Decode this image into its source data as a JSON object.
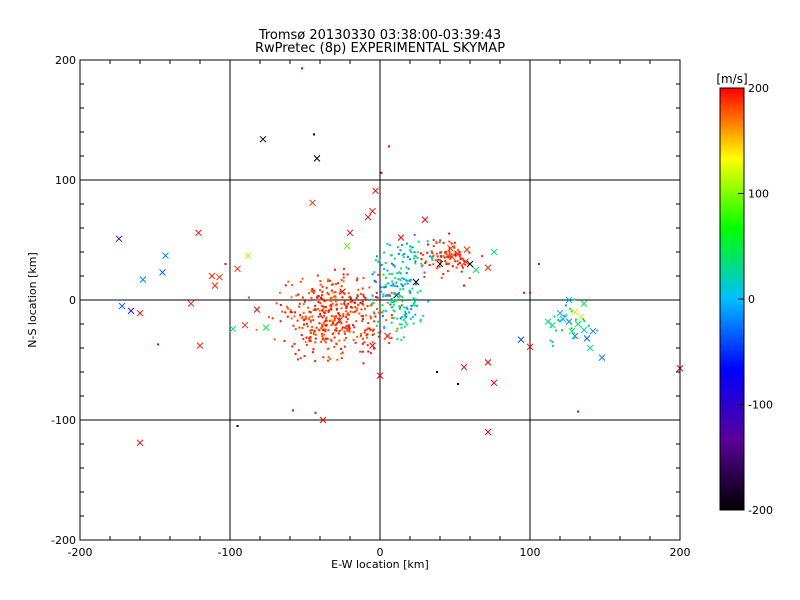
{
  "chart_data": {
    "type": "scatter",
    "title": "Tromsø 20130330 03:38:00-03:39:43",
    "subtitle": "RwPretec (8p) EXPERIMENTAL SKYMAP",
    "xlabel": "E-W location [km]",
    "ylabel": "N-S location [km]",
    "xlim": [
      -200,
      200
    ],
    "ylim": [
      -200,
      200
    ],
    "xticks": [
      "-200",
      "-100",
      "0",
      "100",
      "200"
    ],
    "yticks": [
      "-200",
      "-100",
      "0",
      "100",
      "200"
    ],
    "grid": true,
    "colorbar": {
      "label": "[m/s]",
      "range": [
        -200,
        200
      ],
      "ticks": [
        "200",
        "100",
        "0",
        "-100",
        "-200"
      ],
      "stops": [
        "#000000",
        "#5a0099",
        "#0000ff",
        "#00bfff",
        "#00ff00",
        "#ffff00",
        "#ff0000"
      ]
    },
    "series": [
      {
        "marker": "x",
        "points": [
          [
            -78,
            134,
            -200
          ],
          [
            -42,
            118,
            -200
          ],
          [
            -45,
            81,
            190
          ],
          [
            -174,
            51,
            -130
          ],
          [
            -121,
            56,
            200
          ],
          [
            -112,
            20,
            190
          ],
          [
            -107,
            19,
            190
          ],
          [
            -95,
            26,
            190
          ],
          [
            -88,
            37,
            110
          ],
          [
            -158,
            17,
            -20
          ],
          [
            -143,
            37,
            -20
          ],
          [
            -145,
            23,
            -30
          ],
          [
            -172,
            -5,
            -30
          ],
          [
            -166,
            -9,
            -80
          ],
          [
            -160,
            -11,
            200
          ],
          [
            -126,
            -3,
            190
          ],
          [
            -98,
            -24,
            40
          ],
          [
            -90,
            -21,
            190
          ],
          [
            -82,
            -8,
            200
          ],
          [
            -76,
            -23,
            50
          ],
          [
            -110,
            12,
            190
          ],
          [
            -120,
            -38,
            190
          ],
          [
            -160,
            -119,
            200
          ],
          [
            -38,
            -100,
            200
          ],
          [
            -27,
            -17,
            200
          ],
          [
            -25,
            7,
            200
          ],
          [
            -22,
            45,
            90
          ],
          [
            -20,
            56,
            200
          ],
          [
            -8,
            69,
            200
          ],
          [
            -5,
            74,
            200
          ],
          [
            -3,
            91,
            200
          ],
          [
            0,
            -63,
            200
          ],
          [
            -5,
            -38,
            200
          ],
          [
            30,
            67,
            200
          ],
          [
            14,
            52,
            200
          ],
          [
            5,
            -30,
            200
          ],
          [
            47,
            43,
            190
          ],
          [
            52,
            38,
            190
          ],
          [
            57,
            32,
            190
          ],
          [
            60,
            30,
            -200
          ],
          [
            40,
            30,
            -200
          ],
          [
            64,
            25,
            40
          ],
          [
            72,
            27,
            190
          ],
          [
            76,
            40,
            40
          ],
          [
            72,
            -52,
            200
          ],
          [
            76,
            -69,
            200
          ],
          [
            56,
            -56,
            200
          ],
          [
            72,
            -110,
            200
          ],
          [
            100,
            -39,
            200
          ],
          [
            94,
            -33,
            -40
          ],
          [
            112,
            -18,
            40
          ],
          [
            115,
            -21,
            40
          ],
          [
            120,
            -11,
            -10
          ],
          [
            122,
            -16,
            -10
          ],
          [
            126,
            -18,
            -20
          ],
          [
            128,
            -26,
            60
          ],
          [
            130,
            -30,
            -20
          ],
          [
            132,
            -20,
            40
          ],
          [
            134,
            -14,
            120
          ],
          [
            136,
            -25,
            10
          ],
          [
            138,
            -32,
            -30
          ],
          [
            140,
            -40,
            30
          ],
          [
            142,
            -26,
            -20
          ],
          [
            148,
            -48,
            -20
          ],
          [
            126,
            0,
            -10
          ],
          [
            130,
            -10,
            120
          ],
          [
            136,
            -3,
            50
          ],
          [
            200,
            -57,
            200
          ],
          [
            11,
            4,
            -200
          ],
          [
            24,
            15,
            -200
          ],
          [
            48,
            36,
            190
          ],
          [
            58,
            42,
            190
          ]
        ]
      },
      {
        "marker": "dot",
        "points": [
          [
            -52,
            193,
            200
          ],
          [
            -44,
            138,
            -200
          ],
          [
            6,
            128,
            200
          ],
          [
            1,
            106,
            200
          ],
          [
            -95,
            -105,
            -200
          ],
          [
            -43,
            -94,
            200
          ],
          [
            38,
            -60,
            -200
          ],
          [
            52,
            -70,
            -200
          ],
          [
            132,
            -93,
            200
          ],
          [
            -148,
            -37,
            200
          ],
          [
            -103,
            30,
            200
          ],
          [
            106,
            30,
            200
          ],
          [
            100,
            6,
            200
          ],
          [
            96,
            6,
            200
          ],
          [
            -58,
            -92,
            200
          ],
          [
            56,
            12,
            200
          ]
        ]
      }
    ]
  }
}
